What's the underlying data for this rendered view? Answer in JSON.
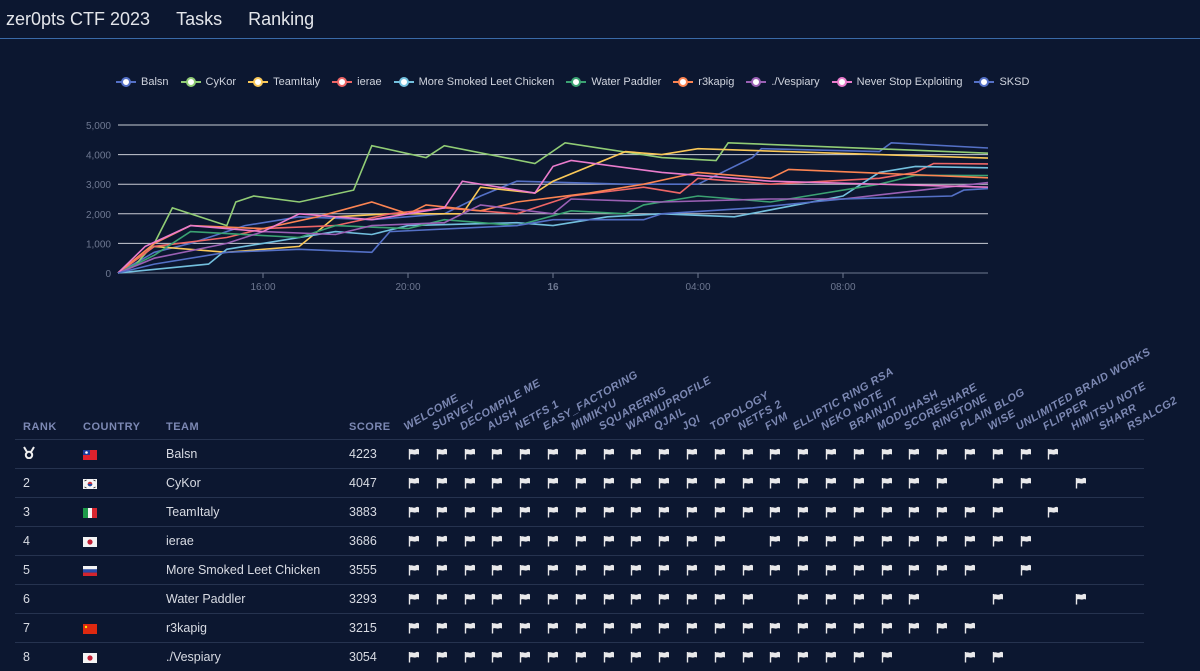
{
  "nav": {
    "brand": "zer0pts CTF 2023",
    "links": [
      "Tasks",
      "Ranking"
    ]
  },
  "chart_data": {
    "type": "line",
    "ylim": [
      0,
      5000
    ],
    "yticks": [
      "0",
      "1,000",
      "2,000",
      "3,000",
      "4,000",
      "5,000"
    ],
    "xticks": [
      "16:00",
      "20:00",
      "16",
      "04:00",
      "08:00"
    ],
    "grid": true,
    "legend_placement": "top",
    "series": [
      {
        "name": "Balsn",
        "color": "#5470c6",
        "points": [
          [
            "15 12:00",
            0
          ],
          [
            "15 13:00",
            700
          ],
          [
            "15 14:00",
            1000
          ],
          [
            "15 15:30",
            1600
          ],
          [
            "15 17:00",
            1900
          ],
          [
            "15 19:00",
            1800
          ],
          [
            "15 21:00",
            2000
          ],
          [
            "15 22:00",
            2600
          ],
          [
            "15 23:00",
            3100
          ],
          [
            "16 02:00",
            3000
          ],
          [
            "16 04:00",
            3000
          ],
          [
            "16 05:30",
            3900
          ],
          [
            "16 05:45",
            4200
          ],
          [
            "16 09:00",
            4100
          ],
          [
            "16 09:20",
            4400
          ],
          [
            "16 12:00",
            4223
          ]
        ]
      },
      {
        "name": "CyKor",
        "color": "#91cc75",
        "points": [
          [
            "15 12:00",
            0
          ],
          [
            "15 12:30",
            300
          ],
          [
            "15 13:00",
            1000
          ],
          [
            "15 13:30",
            2200
          ],
          [
            "15 15:00",
            1600
          ],
          [
            "15 15:15",
            2400
          ],
          [
            "15 15:45",
            2600
          ],
          [
            "15 17:00",
            2400
          ],
          [
            "15 18:30",
            2800
          ],
          [
            "15 19:00",
            4300
          ],
          [
            "15 20:30",
            3900
          ],
          [
            "15 21:00",
            4300
          ],
          [
            "15 23:30",
            3700
          ],
          [
            "16 00:20",
            4400
          ],
          [
            "16 03:00",
            3900
          ],
          [
            "16 04:30",
            3800
          ],
          [
            "16 04:50",
            4400
          ],
          [
            "16 12:00",
            4047
          ]
        ]
      },
      {
        "name": "TeamItaly",
        "color": "#fac858",
        "points": [
          [
            "15 12:00",
            0
          ],
          [
            "15 13:00",
            900
          ],
          [
            "15 15:00",
            700
          ],
          [
            "15 17:00",
            900
          ],
          [
            "15 18:00",
            1900
          ],
          [
            "15 19:30",
            2000
          ],
          [
            "15 21:30",
            2000
          ],
          [
            "15 22:00",
            2900
          ],
          [
            "15 23:30",
            2700
          ],
          [
            "16 00:00",
            3100
          ],
          [
            "16 02:00",
            4100
          ],
          [
            "16 03:00",
            4000
          ],
          [
            "16 04:00",
            4200
          ],
          [
            "16 12:00",
            3883
          ]
        ]
      },
      {
        "name": "ierae",
        "color": "#ee6666",
        "points": [
          [
            "15 12:00",
            0
          ],
          [
            "15 13:00",
            900
          ],
          [
            "15 15:00",
            1200
          ],
          [
            "15 16:00",
            1500
          ],
          [
            "15 18:00",
            1600
          ],
          [
            "15 19:30",
            2000
          ],
          [
            "15 21:00",
            2200
          ],
          [
            "15 23:00",
            2000
          ],
          [
            "16 00:30",
            2600
          ],
          [
            "16 02:30",
            2900
          ],
          [
            "16 03:30",
            2700
          ],
          [
            "16 04:00",
            3200
          ],
          [
            "16 06:00",
            3000
          ],
          [
            "16 09:00",
            3200
          ],
          [
            "16 10:00",
            3400
          ],
          [
            "16 10:30",
            3700
          ],
          [
            "16 12:00",
            3686
          ]
        ]
      },
      {
        "name": "More Smoked Leet Chicken",
        "color": "#73c0de",
        "points": [
          [
            "15 12:00",
            0
          ],
          [
            "15 14:30",
            300
          ],
          [
            "15 15:00",
            800
          ],
          [
            "15 16:00",
            1000
          ],
          [
            "15 18:00",
            1400
          ],
          [
            "15 19:00",
            1300
          ],
          [
            "15 20:00",
            1600
          ],
          [
            "15 23:00",
            1700
          ],
          [
            "16 00:00",
            1600
          ],
          [
            "16 01:30",
            1900
          ],
          [
            "16 03:00",
            2000
          ],
          [
            "16 05:00",
            1900
          ],
          [
            "16 08:00",
            2600
          ],
          [
            "16 09:00",
            3400
          ],
          [
            "16 10:00",
            3600
          ],
          [
            "16 12:00",
            3555
          ]
        ]
      },
      {
        "name": "Water Paddler",
        "color": "#3ba272",
        "points": [
          [
            "15 12:00",
            0
          ],
          [
            "15 13:00",
            600
          ],
          [
            "15 14:00",
            1400
          ],
          [
            "15 17:00",
            1200
          ],
          [
            "15 18:00",
            1600
          ],
          [
            "15 20:00",
            1500
          ],
          [
            "15 21:00",
            1800
          ],
          [
            "15 23:00",
            1600
          ],
          [
            "16 00:30",
            2100
          ],
          [
            "16 02:00",
            2000
          ],
          [
            "16 02:30",
            2300
          ],
          [
            "16 04:00",
            2600
          ],
          [
            "16 06:00",
            2400
          ],
          [
            "16 07:00",
            2600
          ],
          [
            "16 09:00",
            3000
          ],
          [
            "16 10:00",
            3300
          ],
          [
            "16 12:00",
            3293
          ]
        ]
      },
      {
        "name": "r3kapig",
        "color": "#fc8452",
        "points": [
          [
            "15 12:00",
            0
          ],
          [
            "15 13:00",
            1000
          ],
          [
            "15 14:00",
            1600
          ],
          [
            "15 16:00",
            1500
          ],
          [
            "15 17:30",
            1900
          ],
          [
            "15 19:00",
            2400
          ],
          [
            "15 20:00",
            2000
          ],
          [
            "15 20:30",
            2300
          ],
          [
            "15 22:00",
            2100
          ],
          [
            "15 23:00",
            2400
          ],
          [
            "16 01:00",
            2700
          ],
          [
            "16 02:30",
            3000
          ],
          [
            "16 04:00",
            3400
          ],
          [
            "16 06:00",
            3200
          ],
          [
            "16 06:30",
            3500
          ],
          [
            "16 12:00",
            3215
          ]
        ]
      },
      {
        "name": "./Vespiary",
        "color": "#9a60b4",
        "points": [
          [
            "15 12:00",
            0
          ],
          [
            "15 13:00",
            500
          ],
          [
            "15 15:00",
            1000
          ],
          [
            "15 16:00",
            1400
          ],
          [
            "15 18:00",
            1300
          ],
          [
            "15 19:00",
            1600
          ],
          [
            "15 21:00",
            1700
          ],
          [
            "15 22:00",
            2300
          ],
          [
            "16 00:00",
            2000
          ],
          [
            "16 00:30",
            2500
          ],
          [
            "16 03:00",
            2400
          ],
          [
            "16 06:00",
            2500
          ],
          [
            "16 08:00",
            2500
          ],
          [
            "16 12:00",
            3054
          ]
        ]
      },
      {
        "name": "Never Stop Exploiting",
        "color": "#ea7ccc",
        "points": [
          [
            "15 12:00",
            0
          ],
          [
            "15 12:45",
            900
          ],
          [
            "15 14:00",
            1600
          ],
          [
            "15 16:00",
            1400
          ],
          [
            "15 17:00",
            2000
          ],
          [
            "15 19:00",
            1800
          ],
          [
            "15 20:00",
            2000
          ],
          [
            "15 21:00",
            2200
          ],
          [
            "15 21:30",
            3100
          ],
          [
            "15 23:30",
            2700
          ],
          [
            "16 00:00",
            3600
          ],
          [
            "16 00:30",
            3800
          ],
          [
            "16 03:00",
            3400
          ],
          [
            "16 06:00",
            3100
          ],
          [
            "16 12:00",
            2900
          ]
        ]
      },
      {
        "name": "SKSD",
        "color": "#5470c6",
        "points": [
          [
            "15 12:00",
            0
          ],
          [
            "15 13:00",
            300
          ],
          [
            "15 15:00",
            700
          ],
          [
            "15 17:00",
            800
          ],
          [
            "15 19:00",
            700
          ],
          [
            "15 19:30",
            1400
          ],
          [
            "15 23:00",
            1600
          ],
          [
            "16 00:00",
            1800
          ],
          [
            "16 02:30",
            1800
          ],
          [
            "16 03:00",
            2000
          ],
          [
            "16 05:30",
            2200
          ],
          [
            "16 08:00",
            2500
          ],
          [
            "16 11:00",
            2600
          ],
          [
            "16 11:20",
            2800
          ],
          [
            "16 12:00",
            2850
          ]
        ]
      }
    ]
  },
  "table": {
    "headers": {
      "rank": "RANK",
      "country": "COUNTRY",
      "team": "TEAM",
      "score": "SCORE"
    },
    "challenges": [
      "WELCOME",
      "SURVEY",
      "DECOMPILE ME",
      "AUSH",
      "NETFS 1",
      "EASY_FACTORING",
      "MIMIKYU",
      "SQUARERNG",
      "WARMUPROFILE",
      "QJAIL",
      "JQI",
      "TOPOLOGY",
      "NETFS 2",
      "FVM",
      "ELLIPTIC RING RSA",
      "NEKO NOTE",
      "BRAINJIT",
      "MODUHASH",
      "SCORESHARE",
      "RINGTONE",
      "PLAIN BLOG",
      "WISE",
      "UNLIMITED BRAID WORKS",
      "FLIPPER",
      "HIMITSU NOTE",
      "SHARR",
      "RSALCG2"
    ],
    "rows": [
      {
        "rank": "",
        "rank_icon": "medal-icon",
        "country": "tw",
        "team": "Balsn",
        "score": "4223",
        "solved": [
          0,
          1,
          2,
          3,
          4,
          5,
          6,
          7,
          8,
          9,
          10,
          11,
          12,
          13,
          14,
          15,
          16,
          17,
          18,
          19,
          20,
          21,
          22,
          23
        ]
      },
      {
        "rank": "2",
        "country": "kr",
        "team": "CyKor",
        "score": "4047",
        "solved": [
          0,
          1,
          2,
          3,
          4,
          5,
          6,
          7,
          8,
          9,
          10,
          11,
          12,
          13,
          14,
          15,
          16,
          17,
          18,
          19,
          21,
          22,
          24
        ]
      },
      {
        "rank": "3",
        "country": "it",
        "team": "TeamItaly",
        "score": "3883",
        "solved": [
          0,
          1,
          2,
          3,
          4,
          5,
          6,
          7,
          8,
          9,
          10,
          11,
          12,
          13,
          14,
          15,
          16,
          17,
          18,
          19,
          20,
          21,
          23
        ]
      },
      {
        "rank": "4",
        "country": "jp",
        "team": "ierae",
        "score": "3686",
        "solved": [
          0,
          1,
          2,
          3,
          4,
          5,
          6,
          7,
          8,
          9,
          10,
          11,
          13,
          14,
          15,
          16,
          17,
          18,
          19,
          20,
          21,
          22
        ]
      },
      {
        "rank": "5",
        "country": "ru",
        "team": "More Smoked Leet Chicken",
        "score": "3555",
        "solved": [
          0,
          1,
          2,
          3,
          4,
          5,
          6,
          7,
          8,
          9,
          10,
          11,
          12,
          13,
          14,
          15,
          16,
          17,
          18,
          19,
          20,
          22
        ]
      },
      {
        "rank": "6",
        "country": "",
        "team": "Water Paddler",
        "score": "3293",
        "solved": [
          0,
          1,
          2,
          3,
          4,
          5,
          6,
          7,
          8,
          9,
          10,
          11,
          12,
          14,
          15,
          16,
          17,
          18,
          21,
          24
        ]
      },
      {
        "rank": "7",
        "country": "cn",
        "team": "r3kapig",
        "score": "3215",
        "solved": [
          0,
          1,
          2,
          3,
          4,
          5,
          6,
          7,
          8,
          9,
          10,
          11,
          12,
          13,
          14,
          15,
          16,
          17,
          18,
          19,
          20
        ]
      },
      {
        "rank": "8",
        "country": "jp",
        "team": "./Vespiary",
        "score": "3054",
        "solved": [
          0,
          1,
          2,
          3,
          4,
          5,
          6,
          7,
          8,
          9,
          10,
          11,
          12,
          13,
          14,
          15,
          16,
          17,
          20,
          21
        ]
      }
    ]
  }
}
